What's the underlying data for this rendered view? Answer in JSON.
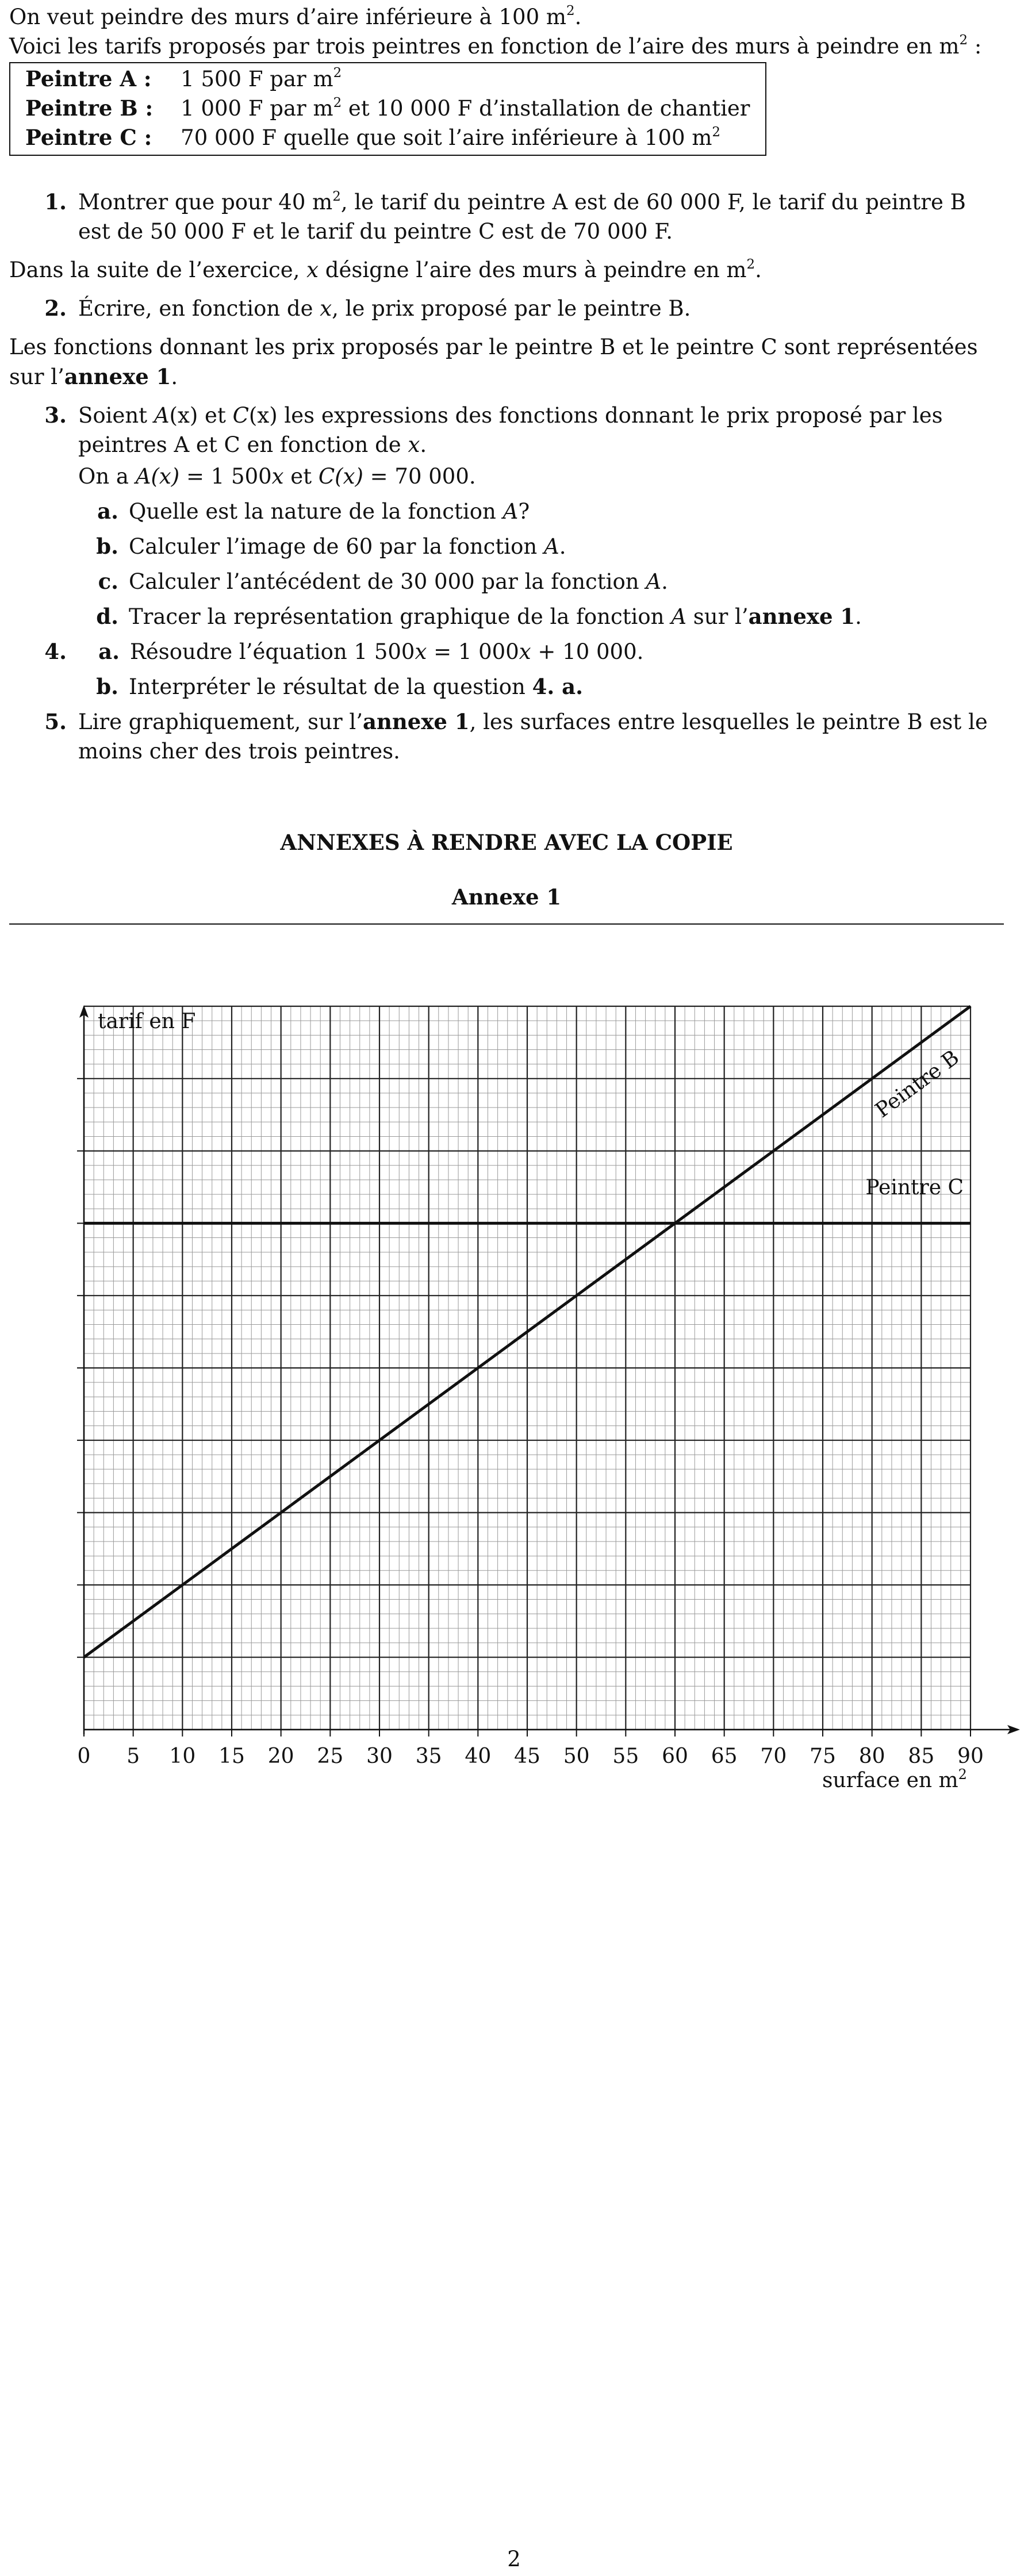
{
  "intro": {
    "line1_a": "On veut peindre des murs d’aire inférieure à 100 m",
    "line1_b": ".",
    "line2_a": "Voici les tarifs proposés par trois peintres en fonction de l’aire des murs à peindre en m",
    "line2_b": " :",
    "sup2": "2"
  },
  "tarifs": [
    {
      "name": "Peintre A :",
      "text_a": "1 500 F par m",
      "text_b": ""
    },
    {
      "name": "Peintre B :",
      "text_a": "1 000 F par m",
      "text_b": " et 10 000 F d’installation de chantier"
    },
    {
      "name": "Peintre C :",
      "text_a": "70 000 F quelle que soit l’aire inférieure à 100 m",
      "text_b": ""
    }
  ],
  "q1": {
    "num": "1.",
    "text_a": "Montrer que pour 40 m",
    "text_b": ", le tarif du peintre A est de 60 000 F, le tarif du peintre B est de 50 000 F et le tarif du peintre C est de 70 000 F."
  },
  "para1": {
    "text_a": "Dans la suite de l’exercice, ",
    "var": "x",
    "text_b": " désigne l’aire des murs à peindre en m",
    "text_c": "."
  },
  "q2": {
    "num": "2.",
    "text_a": "Écrire, en fonction de ",
    "var": "x",
    "text_b": ", le prix proposé par le peintre B."
  },
  "para2": {
    "text_a": "Les fonctions donnant les prix proposés par le peintre B et le peintre C sont représentées sur l’",
    "bold": "annexe 1",
    "text_b": "."
  },
  "q3": {
    "num": "3.",
    "l1_a": "Soient ",
    "l1_A": "A",
    "l1_px": "(x)",
    "l1_b": " et ",
    "l1_C": "C",
    "l1_py": "(x)",
    "l1_c": " les expressions des fonctions donnant le prix proposé par les peintres A et C en fonction de ",
    "l1_x": "x",
    "l1_d": ".",
    "l2_a": "On a ",
    "l2_Ax": "A(x)",
    "l2_b": " = 1 500",
    "l2_x": "x",
    "l2_c": " et ",
    "l2_Cx": "C(x)",
    "l2_d": " = 70 000.",
    "subs": [
      {
        "num": "a.",
        "text": "Quelle est la nature de la fonction ",
        "var": "A",
        "end": "?"
      },
      {
        "num": "b.",
        "text": "Calculer l’image de 60 par la fonction ",
        "var": "A",
        "end": "."
      },
      {
        "num": "c.",
        "text": "Calculer l’antécédent de 30 000 par la fonction ",
        "var": "A",
        "end": "."
      },
      {
        "num": "d.",
        "text": "Tracer la représentation graphique de la fonction ",
        "var": "A",
        "mid": " sur l’",
        "bold": "annexe 1",
        "end": "."
      }
    ]
  },
  "q4": {
    "num": "4.",
    "a_num": "a.",
    "a_text_a": "Résoudre l’équation 1 500",
    "a_x1": "x",
    "a_text_b": " = 1 000",
    "a_x2": "x",
    "a_text_c": " + 10 000.",
    "b_num": "b.",
    "b_text": "Interpréter le résultat de la question ",
    "b_bold": "4. a.",
    "b_end": ""
  },
  "q5": {
    "num": "5.",
    "text_a": "Lire graphiquement, sur l’",
    "bold": "annexe 1",
    "text_b": ", les surfaces entre lesquelles le peintre B est le moins cher des trois peintres."
  },
  "annexes_title": "ANNEXES À RENDRE AVEC LA COPIE",
  "annexe1_title": "Annexe 1",
  "chart_data": {
    "type": "line",
    "ylabel": "tarif en F",
    "xlabel_a": "surface en m",
    "xlabel_sup": "2",
    "xlim": [
      0,
      90
    ],
    "ylim": [
      0,
      100000
    ],
    "x_ticks": [
      "0",
      "5",
      "10",
      "15",
      "20",
      "25",
      "30",
      "35",
      "40",
      "45",
      "50",
      "55",
      "60",
      "65",
      "70",
      "75",
      "80",
      "85",
      "90"
    ],
    "y_tick_step": 10000,
    "grid": true,
    "series": [
      {
        "name": "Peintre B",
        "x": [
          0,
          90
        ],
        "y": [
          10000,
          100000
        ]
      },
      {
        "name": "Peintre C",
        "x": [
          0,
          90
        ],
        "y": [
          70000,
          70000
        ]
      }
    ]
  },
  "page_number": "2"
}
